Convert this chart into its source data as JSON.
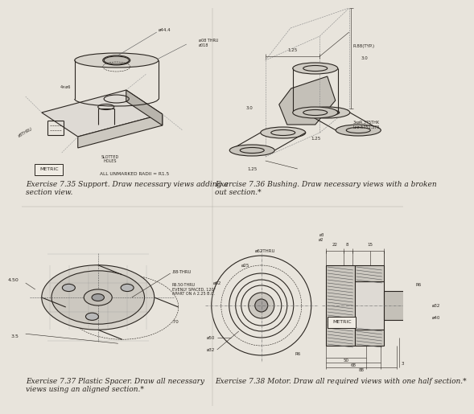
{
  "bg_color": "#e8e4dc",
  "line_color": "#2a2520",
  "label_fontsize": 6.5,
  "exercises": [
    {
      "id": "7.35",
      "label": "Exercise 7.35 Support. Draw necessary views adding a\nsection view.",
      "note": "ALL UNMARKED RADII = R1.5",
      "metric": true
    },
    {
      "id": "7.36",
      "label": "Exercise 7.36 Bushing. Draw necessary views with a broken\nout section.*"
    },
    {
      "id": "7.37",
      "label": "Exercise 7.37 Plastic Spacer. Draw all necessary\nviews using an aligned section.*"
    },
    {
      "id": "7.38",
      "label": "Exercise 7.38 Motor. Draw all required views with one half section.*",
      "metric": true
    }
  ],
  "dim_color": "#3a3530",
  "hatch_color": "#3a3530"
}
